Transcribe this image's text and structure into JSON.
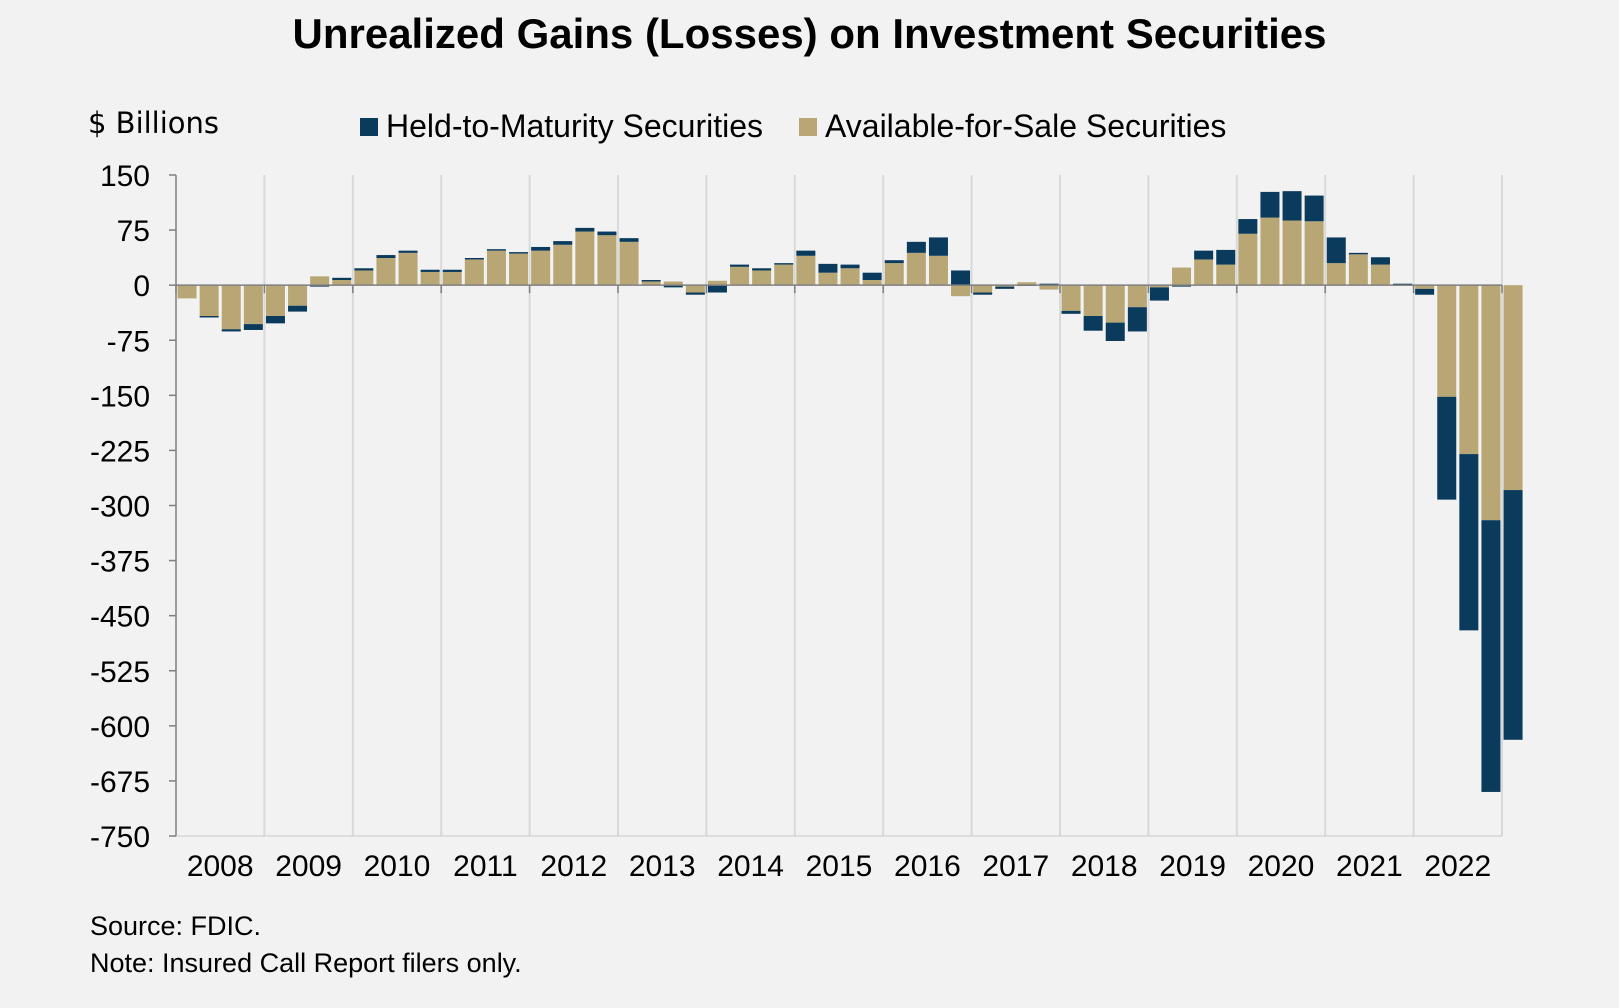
{
  "chart_data": {
    "type": "bar",
    "stacked": true,
    "title": "Unrealized Gains (Losses) on Investment Securities",
    "ylabel": "$ Billions",
    "xlabel": "",
    "ylim": [
      -750,
      150
    ],
    "yticks": [
      150,
      75,
      0,
      -75,
      -150,
      -225,
      -300,
      -375,
      -450,
      -525,
      -600,
      -675,
      -750
    ],
    "year_labels": [
      "2008",
      "2009",
      "2010",
      "2011",
      "2012",
      "2013",
      "2014",
      "2015",
      "2016",
      "2017",
      "2018",
      "2019",
      "2020",
      "2021",
      "2022"
    ],
    "periods_per_year": 4,
    "grid": "vertical lines at year boundaries",
    "legend_position": "top",
    "series": [
      {
        "name": "Held-to-Maturity Securities",
        "color": "#0a3a5c",
        "values": [
          0,
          -2,
          -3,
          -8,
          -10,
          -8,
          -2,
          3,
          3,
          4,
          3,
          3,
          3,
          2,
          2,
          2,
          5,
          5,
          5,
          5,
          5,
          2,
          -3,
          -3,
          -10,
          3,
          3,
          2,
          7,
          12,
          5,
          10,
          4,
          15,
          25,
          20,
          -3,
          -3,
          -1,
          2,
          -4,
          -20,
          -25,
          -33,
          -18,
          -2,
          12,
          20,
          20,
          35,
          40,
          35,
          35,
          2,
          10,
          2,
          -8,
          -140,
          -240,
          -370,
          -340
        ],
        "label_values": false
      },
      {
        "name": "Available-for-Sale Securities",
        "color": "#b8a775",
        "values": [
          -18,
          -42,
          -60,
          -53,
          -42,
          -28,
          12,
          7,
          20,
          37,
          44,
          18,
          18,
          35,
          47,
          43,
          47,
          55,
          73,
          68,
          59,
          5,
          5,
          -10,
          6,
          25,
          20,
          28,
          40,
          17,
          23,
          7,
          30,
          44,
          40,
          -15,
          -10,
          -2,
          4,
          -6,
          -35,
          -42,
          -51,
          -30,
          -3,
          24,
          35,
          28,
          70,
          92,
          88,
          87,
          30,
          42,
          28,
          -1,
          -5,
          -152,
          -230,
          -320,
          -279
        ]
      }
    ],
    "source_note": "Source: FDIC.",
    "note": "Note: Insured Call Report filers only."
  }
}
